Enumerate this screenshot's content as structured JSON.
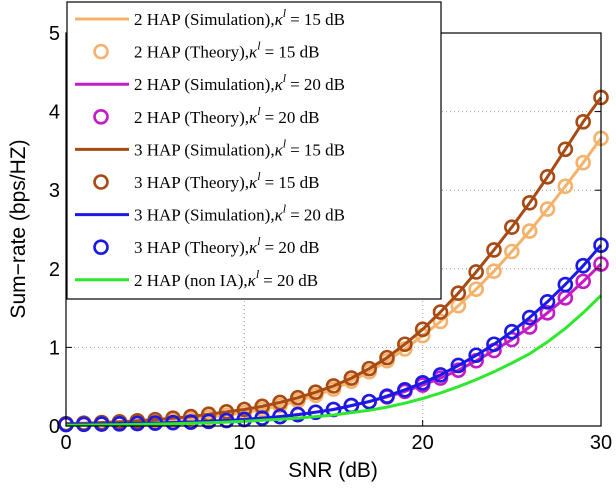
{
  "chart_data": {
    "type": "line",
    "xlabel": "SNR (dB)",
    "ylabel": "Sum−rate (bps/HZ)",
    "xlim": [
      0,
      30
    ],
    "ylim": [
      0,
      5
    ],
    "x_ticks": [
      {
        "value": 0,
        "label": "0"
      },
      {
        "value": 10,
        "label": "10"
      },
      {
        "value": 20,
        "label": "20"
      },
      {
        "value": 30,
        "label": "30"
      }
    ],
    "y_ticks": [
      {
        "value": 0,
        "label": "0"
      },
      {
        "value": 1,
        "label": "1"
      },
      {
        "value": 2,
        "label": "2"
      },
      {
        "value": 3,
        "label": "3"
      },
      {
        "value": 4,
        "label": "4"
      },
      {
        "value": 5,
        "label": "5"
      }
    ],
    "grid": "dotted",
    "legend_position": "top-left",
    "x": [
      0,
      1,
      2,
      3,
      4,
      5,
      6,
      7,
      8,
      9,
      10,
      11,
      12,
      13,
      14,
      15,
      16,
      17,
      18,
      19,
      20,
      21,
      22,
      23,
      24,
      25,
      26,
      27,
      28,
      29,
      30
    ],
    "series": [
      {
        "name": "2 HAP (Simulation), κ^l = 15 dB",
        "legend_text": "2 HAP (Simulation),",
        "style": "line",
        "color": "#f5b26b",
        "values": [
          0.02,
          0.024,
          0.03,
          0.037,
          0.046,
          0.057,
          0.071,
          0.088,
          0.11,
          0.14,
          0.17,
          0.21,
          0.26,
          0.32,
          0.39,
          0.47,
          0.57,
          0.69,
          0.83,
          0.98,
          1.15,
          1.33,
          1.53,
          1.74,
          1.97,
          2.22,
          2.48,
          2.76,
          3.05,
          3.35,
          3.66
        ]
      },
      {
        "name": "2 HAP (Theory), κ^l = 15 dB",
        "legend_text": "2 HAP (Theory),",
        "style": "marker",
        "color": "#f5b26b",
        "values": [
          0.02,
          0.024,
          0.03,
          0.037,
          0.046,
          0.057,
          0.071,
          0.088,
          0.11,
          0.14,
          0.17,
          0.21,
          0.26,
          0.32,
          0.39,
          0.47,
          0.57,
          0.69,
          0.83,
          0.98,
          1.15,
          1.33,
          1.53,
          1.74,
          1.97,
          2.22,
          2.48,
          2.76,
          3.05,
          3.35,
          3.66
        ]
      },
      {
        "name": "2 HAP (Simulation), κ^l = 20 dB",
        "legend_text": "2 HAP (Simulation),",
        "style": "line",
        "color": "#c41cc4",
        "values": [
          0.02,
          0.022,
          0.025,
          0.028,
          0.032,
          0.037,
          0.043,
          0.05,
          0.059,
          0.07,
          0.083,
          0.1,
          0.12,
          0.145,
          0.175,
          0.21,
          0.26,
          0.31,
          0.37,
          0.44,
          0.52,
          0.61,
          0.71,
          0.83,
          0.96,
          1.1,
          1.26,
          1.44,
          1.63,
          1.84,
          2.06
        ]
      },
      {
        "name": "2 HAP (Theory), κ^l = 20 dB",
        "legend_text": "2 HAP (Theory),",
        "style": "marker",
        "color": "#c41cc4",
        "values": [
          0.02,
          0.022,
          0.025,
          0.028,
          0.032,
          0.037,
          0.043,
          0.05,
          0.059,
          0.07,
          0.083,
          0.1,
          0.12,
          0.145,
          0.175,
          0.21,
          0.26,
          0.31,
          0.37,
          0.44,
          0.52,
          0.61,
          0.71,
          0.83,
          0.96,
          1.1,
          1.26,
          1.44,
          1.63,
          1.84,
          2.06
        ]
      },
      {
        "name": "3 HAP (Simulation), κ^l = 15 dB",
        "legend_text": "3 HAP (Simulation),",
        "style": "line",
        "color": "#a84a14",
        "values": [
          0.03,
          0.036,
          0.044,
          0.054,
          0.066,
          0.081,
          0.1,
          0.12,
          0.15,
          0.18,
          0.21,
          0.25,
          0.3,
          0.36,
          0.43,
          0.51,
          0.61,
          0.73,
          0.87,
          1.04,
          1.23,
          1.45,
          1.69,
          1.96,
          2.24,
          2.53,
          2.84,
          3.17,
          3.52,
          3.87,
          4.18
        ]
      },
      {
        "name": "3 HAP (Theory), κ^l = 15 dB",
        "legend_text": "3 HAP (Theory),",
        "style": "marker",
        "color": "#a84a14",
        "values": [
          0.03,
          0.036,
          0.044,
          0.054,
          0.066,
          0.081,
          0.1,
          0.12,
          0.15,
          0.18,
          0.21,
          0.25,
          0.3,
          0.36,
          0.43,
          0.51,
          0.61,
          0.73,
          0.87,
          1.04,
          1.23,
          1.45,
          1.69,
          1.96,
          2.24,
          2.53,
          2.84,
          3.17,
          3.52,
          3.87,
          4.18
        ]
      },
      {
        "name": "3 HAP (Simulation), κ^l = 20 dB",
        "legend_text": "3 HAP (Simulation),",
        "style": "line",
        "color": "#1a1ae6",
        "values": [
          0.02,
          0.022,
          0.025,
          0.028,
          0.032,
          0.037,
          0.043,
          0.05,
          0.059,
          0.07,
          0.083,
          0.1,
          0.12,
          0.145,
          0.175,
          0.21,
          0.26,
          0.31,
          0.38,
          0.46,
          0.55,
          0.65,
          0.77,
          0.9,
          1.04,
          1.2,
          1.38,
          1.58,
          1.8,
          2.04,
          2.3
        ]
      },
      {
        "name": "3 HAP (Theory), κ^l = 20 dB",
        "legend_text": "3 HAP (Theory),",
        "style": "marker",
        "color": "#1a1ae6",
        "values": [
          0.02,
          0.022,
          0.025,
          0.028,
          0.032,
          0.037,
          0.043,
          0.05,
          0.059,
          0.07,
          0.083,
          0.1,
          0.12,
          0.145,
          0.175,
          0.21,
          0.26,
          0.31,
          0.38,
          0.46,
          0.55,
          0.65,
          0.77,
          0.9,
          1.04,
          1.2,
          1.38,
          1.58,
          1.8,
          2.04,
          2.3
        ]
      },
      {
        "name": "2 HAP (non IA), κ^l = 20 dB",
        "legend_text": "2 HAP (non IA),",
        "style": "line",
        "color": "#2de82d",
        "values": [
          0.01,
          0.012,
          0.014,
          0.017,
          0.02,
          0.024,
          0.029,
          0.035,
          0.042,
          0.05,
          0.06,
          0.072,
          0.086,
          0.1,
          0.12,
          0.14,
          0.17,
          0.2,
          0.24,
          0.29,
          0.35,
          0.42,
          0.5,
          0.59,
          0.69,
          0.8,
          0.92,
          1.07,
          1.24,
          1.44,
          1.66
        ]
      }
    ],
    "legend_kappa": {
      "base": "κ",
      "sup": "l"
    },
    "legend_values": [
      "= 15 dB",
      "= 15 dB",
      "= 20 dB",
      "= 20 dB",
      "= 15 dB",
      "= 15 dB",
      "= 20 dB",
      "= 20 dB",
      "= 20 dB"
    ]
  }
}
